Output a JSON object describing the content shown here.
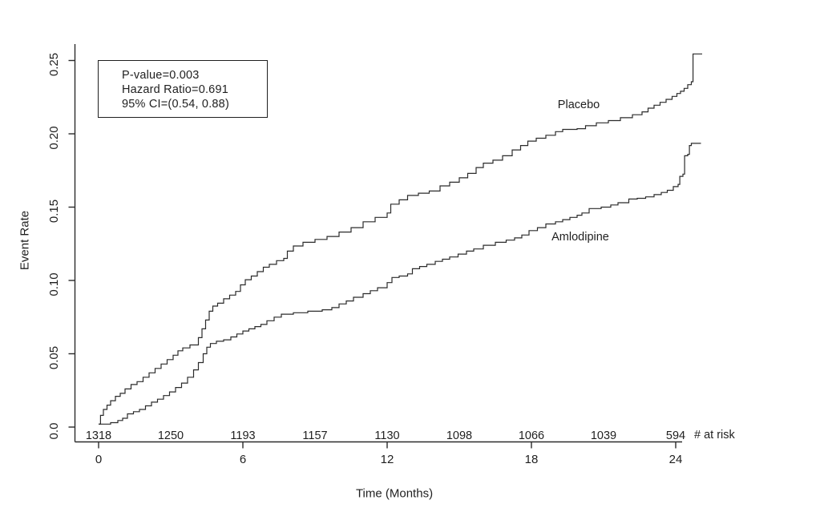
{
  "chart_data": {
    "type": "line",
    "subtype": "kaplan-meier-step",
    "title": "",
    "xlabel": "Time (Months)",
    "ylabel": "Event Rate",
    "xlim": [
      -1,
      25.5
    ],
    "ylim": [
      0,
      0.25
    ],
    "grid": false,
    "x_ticks": [
      0,
      6,
      12,
      18,
      24
    ],
    "y_ticks": [
      "0.0",
      "0.05",
      "0.10",
      "0.15",
      "0.20",
      "0.25"
    ],
    "y_tick_values": [
      0,
      0.05,
      0.1,
      0.15,
      0.2,
      0.25
    ],
    "line_color": "#2b2b2b",
    "annotation": {
      "lines": [
        "P-value=0.003",
        "Hazard Ratio=0.691",
        "95% CI=(0.54, 0.88)"
      ]
    },
    "at_risk": {
      "label": "# at risk",
      "months": [
        0,
        3,
        6,
        9,
        12,
        15,
        18,
        21,
        24
      ],
      "values": [
        "1318",
        "1250",
        "1193",
        "1157",
        "1130",
        "1098",
        "1066",
        "1039",
        "594"
      ]
    },
    "series": [
      {
        "name": "Placebo",
        "label_month": 20.0,
        "label_rate": 0.2197,
        "points": [
          [
            0,
            0.002
          ],
          [
            0.08,
            0.008
          ],
          [
            0.2,
            0.012
          ],
          [
            0.35,
            0.015
          ],
          [
            0.5,
            0.018
          ],
          [
            0.7,
            0.021
          ],
          [
            0.9,
            0.023
          ],
          [
            1.1,
            0.026
          ],
          [
            1.35,
            0.029
          ],
          [
            1.6,
            0.031
          ],
          [
            1.85,
            0.034
          ],
          [
            2.1,
            0.037
          ],
          [
            2.35,
            0.04
          ],
          [
            2.6,
            0.043
          ],
          [
            2.85,
            0.046
          ],
          [
            3.1,
            0.049
          ],
          [
            3.3,
            0.052
          ],
          [
            3.5,
            0.054
          ],
          [
            3.8,
            0.056
          ],
          [
            4.15,
            0.061
          ],
          [
            4.3,
            0.067
          ],
          [
            4.45,
            0.073
          ],
          [
            4.6,
            0.079
          ],
          [
            4.75,
            0.0825
          ],
          [
            4.95,
            0.0845
          ],
          [
            5.2,
            0.0875
          ],
          [
            5.45,
            0.09
          ],
          [
            5.7,
            0.0925
          ],
          [
            5.9,
            0.097
          ],
          [
            6.1,
            0.1005
          ],
          [
            6.35,
            0.103
          ],
          [
            6.6,
            0.106
          ],
          [
            6.85,
            0.109
          ],
          [
            7.1,
            0.111
          ],
          [
            7.4,
            0.1135
          ],
          [
            7.7,
            0.115
          ],
          [
            7.85,
            0.12
          ],
          [
            8.1,
            0.1235
          ],
          [
            8.5,
            0.126
          ],
          [
            9.0,
            0.128
          ],
          [
            9.5,
            0.13
          ],
          [
            10.0,
            0.133
          ],
          [
            10.5,
            0.136
          ],
          [
            11.0,
            0.14
          ],
          [
            11.5,
            0.143
          ],
          [
            12.0,
            0.146
          ],
          [
            12.15,
            0.152
          ],
          [
            12.5,
            0.155
          ],
          [
            12.85,
            0.158
          ],
          [
            13.3,
            0.1595
          ],
          [
            13.75,
            0.161
          ],
          [
            14.2,
            0.1645
          ],
          [
            14.6,
            0.167
          ],
          [
            15.0,
            0.17
          ],
          [
            15.35,
            0.173
          ],
          [
            15.7,
            0.177
          ],
          [
            16.0,
            0.18
          ],
          [
            16.4,
            0.182
          ],
          [
            16.8,
            0.185
          ],
          [
            17.2,
            0.189
          ],
          [
            17.55,
            0.192
          ],
          [
            17.85,
            0.195
          ],
          [
            18.2,
            0.197
          ],
          [
            18.6,
            0.199
          ],
          [
            19.0,
            0.2015
          ],
          [
            19.3,
            0.203
          ],
          [
            19.9,
            0.2035
          ],
          [
            20.25,
            0.2055
          ],
          [
            20.7,
            0.2075
          ],
          [
            21.2,
            0.209
          ],
          [
            21.7,
            0.211
          ],
          [
            22.2,
            0.213
          ],
          [
            22.6,
            0.215
          ],
          [
            22.85,
            0.2175
          ],
          [
            23.1,
            0.2195
          ],
          [
            23.35,
            0.2215
          ],
          [
            23.6,
            0.2235
          ],
          [
            23.85,
            0.2255
          ],
          [
            24.05,
            0.2275
          ],
          [
            24.2,
            0.229
          ],
          [
            24.35,
            0.231
          ],
          [
            24.5,
            0.2335
          ],
          [
            24.65,
            0.2355
          ],
          [
            24.72,
            0.2545
          ],
          [
            25.1,
            0.2545
          ]
        ]
      },
      {
        "name": "Amlodipine",
        "label_month": 20.05,
        "label_rate": 0.1295,
        "points": [
          [
            0,
            0.002
          ],
          [
            0.5,
            0.003
          ],
          [
            0.8,
            0.0045
          ],
          [
            1.0,
            0.006
          ],
          [
            1.2,
            0.009
          ],
          [
            1.45,
            0.0105
          ],
          [
            1.7,
            0.012
          ],
          [
            1.95,
            0.0145
          ],
          [
            2.2,
            0.017
          ],
          [
            2.45,
            0.019
          ],
          [
            2.7,
            0.0215
          ],
          [
            2.95,
            0.024
          ],
          [
            3.2,
            0.027
          ],
          [
            3.45,
            0.03
          ],
          [
            3.7,
            0.034
          ],
          [
            3.95,
            0.039
          ],
          [
            4.15,
            0.044
          ],
          [
            4.35,
            0.05
          ],
          [
            4.5,
            0.0545
          ],
          [
            4.65,
            0.057
          ],
          [
            4.9,
            0.0585
          ],
          [
            5.2,
            0.0595
          ],
          [
            5.5,
            0.0615
          ],
          [
            5.75,
            0.0635
          ],
          [
            6.0,
            0.0655
          ],
          [
            6.25,
            0.067
          ],
          [
            6.5,
            0.0685
          ],
          [
            6.75,
            0.07
          ],
          [
            7.0,
            0.0725
          ],
          [
            7.3,
            0.075
          ],
          [
            7.6,
            0.077
          ],
          [
            8.1,
            0.078
          ],
          [
            8.7,
            0.079
          ],
          [
            9.3,
            0.08
          ],
          [
            9.7,
            0.0815
          ],
          [
            10.0,
            0.084
          ],
          [
            10.3,
            0.086
          ],
          [
            10.6,
            0.0885
          ],
          [
            11.0,
            0.091
          ],
          [
            11.3,
            0.093
          ],
          [
            11.6,
            0.095
          ],
          [
            12.0,
            0.0985
          ],
          [
            12.2,
            0.102
          ],
          [
            12.5,
            0.103
          ],
          [
            12.85,
            0.1045
          ],
          [
            13.05,
            0.108
          ],
          [
            13.35,
            0.1095
          ],
          [
            13.65,
            0.111
          ],
          [
            14.0,
            0.113
          ],
          [
            14.3,
            0.1145
          ],
          [
            14.6,
            0.116
          ],
          [
            14.95,
            0.118
          ],
          [
            15.3,
            0.12
          ],
          [
            15.6,
            0.1215
          ],
          [
            16.0,
            0.124
          ],
          [
            16.5,
            0.126
          ],
          [
            16.95,
            0.1275
          ],
          [
            17.3,
            0.129
          ],
          [
            17.6,
            0.131
          ],
          [
            17.9,
            0.134
          ],
          [
            18.25,
            0.136
          ],
          [
            18.6,
            0.1385
          ],
          [
            19.0,
            0.14
          ],
          [
            19.3,
            0.1415
          ],
          [
            19.6,
            0.143
          ],
          [
            19.9,
            0.1445
          ],
          [
            20.1,
            0.146
          ],
          [
            20.4,
            0.149
          ],
          [
            20.9,
            0.15
          ],
          [
            21.3,
            0.1515
          ],
          [
            21.6,
            0.153
          ],
          [
            22.05,
            0.1555
          ],
          [
            22.4,
            0.156
          ],
          [
            22.75,
            0.157
          ],
          [
            23.1,
            0.1585
          ],
          [
            23.4,
            0.16
          ],
          [
            23.65,
            0.1615
          ],
          [
            23.9,
            0.164
          ],
          [
            24.1,
            0.1655
          ],
          [
            24.17,
            0.171
          ],
          [
            24.3,
            0.1725
          ],
          [
            24.37,
            0.185
          ],
          [
            24.5,
            0.186
          ],
          [
            24.57,
            0.192
          ],
          [
            24.65,
            0.1935
          ],
          [
            25.05,
            0.1935
          ]
        ]
      }
    ]
  }
}
